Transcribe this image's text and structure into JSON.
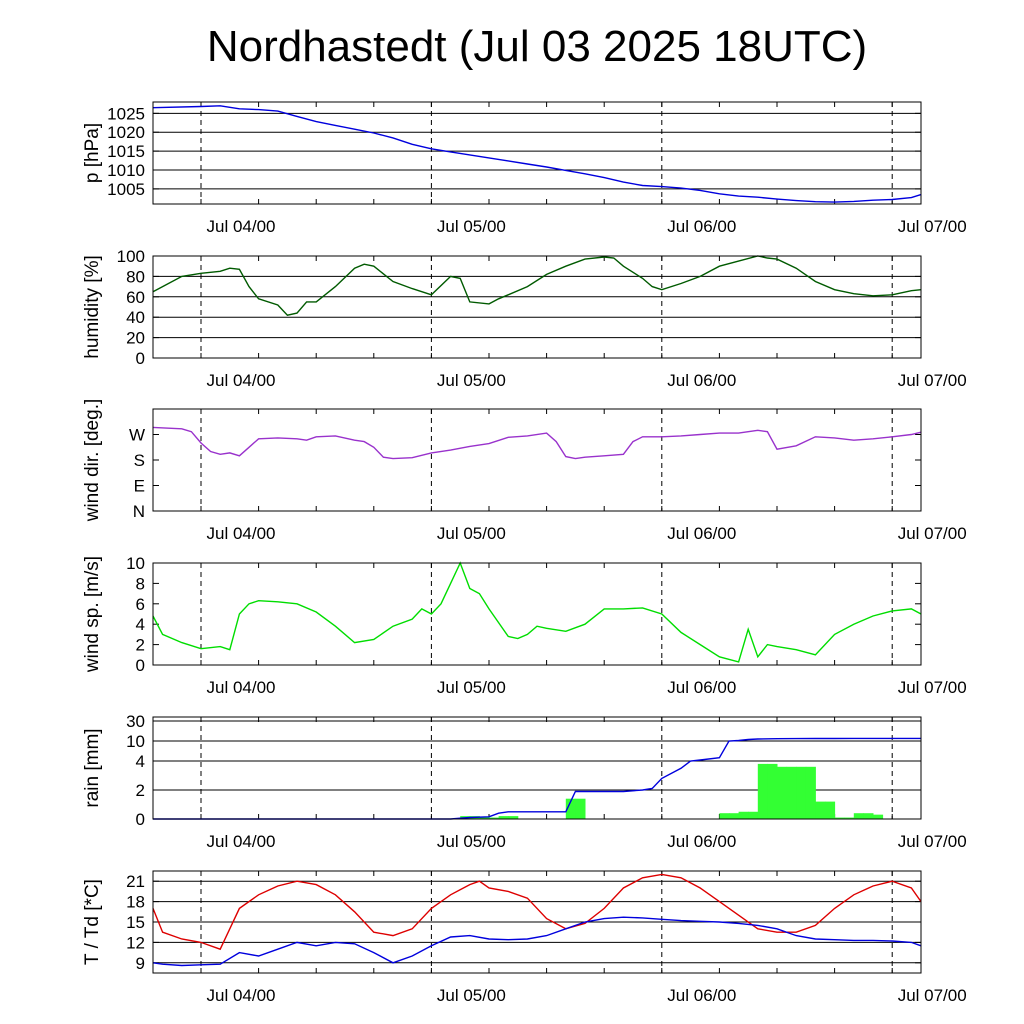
{
  "title": "Nordhastedt (Jul 03 2025 18UTC)",
  "chart_data": [
    {
      "type": "line",
      "ylabel": "p [hPa]",
      "x_tick_labels": [
        "Jul 04/00",
        "Jul 05/00",
        "Jul 06/00",
        "Jul 07/00"
      ],
      "x_range_hours": [
        -5,
        75
      ],
      "ylim": [
        1001,
        1028
      ],
      "y_ticks": [
        1005,
        1010,
        1015,
        1020,
        1025
      ],
      "grid": true,
      "series": [
        {
          "color": "#0000dd",
          "x": [
            -5,
            0,
            2,
            4,
            6,
            8,
            10,
            12,
            14,
            16,
            18,
            20,
            22,
            24,
            26,
            28,
            30,
            32,
            34,
            36,
            38,
            40,
            42,
            44,
            46,
            48,
            50,
            52,
            54,
            56,
            58,
            60,
            62,
            64,
            66,
            68,
            70,
            72,
            74,
            75
          ],
          "y": [
            1026.5,
            1026.8,
            1027,
            1026.2,
            1026.0,
            1025.6,
            1024.2,
            1022.8,
            1021.8,
            1020.8,
            1019.8,
            1018.5,
            1016.8,
            1015.6,
            1014.8,
            1014.0,
            1013.2,
            1012.4,
            1011.6,
            1010.8,
            1009.9,
            1009.0,
            1008.0,
            1006.8,
            1005.9,
            1005.6,
            1005.2,
            1004.6,
            1003.7,
            1003.1,
            1002.8,
            1002.3,
            1001.9,
            1001.6,
            1001.5,
            1001.7,
            1002.0,
            1002.2,
            1002.7,
            1003.5
          ]
        }
      ]
    },
    {
      "type": "line",
      "ylabel": "humidity [%]",
      "x_tick_labels": [
        "Jul 04/00",
        "Jul 05/00",
        "Jul 06/00",
        "Jul 07/00"
      ],
      "x_range_hours": [
        -5,
        75
      ],
      "ylim": [
        0,
        100
      ],
      "y_ticks": [
        0,
        20,
        40,
        60,
        80,
        100
      ],
      "grid": true,
      "series": [
        {
          "color": "#005a00",
          "x": [
            -5,
            -4,
            -2,
            0,
            2,
            3,
            4,
            5,
            6,
            8,
            9,
            10,
            11,
            12,
            14,
            16,
            17,
            18,
            20,
            22,
            24,
            26,
            27,
            28,
            30,
            31,
            32,
            34,
            36,
            38,
            40,
            42,
            43,
            44,
            46,
            47,
            48,
            50,
            52,
            54,
            56,
            58,
            59,
            60,
            62,
            64,
            66,
            68,
            70,
            72,
            74,
            75
          ],
          "y": [
            65,
            70,
            80,
            83,
            85,
            88,
            87,
            70,
            58,
            52,
            42,
            44,
            55,
            55,
            70,
            88,
            92,
            90,
            75,
            68,
            62,
            80,
            78,
            55,
            53,
            58,
            62,
            70,
            82,
            90,
            97,
            99,
            98,
            90,
            78,
            70,
            67,
            73,
            80,
            90,
            95,
            100,
            98,
            97,
            88,
            75,
            67,
            63,
            61,
            62,
            66,
            67
          ]
        }
      ]
    },
    {
      "type": "line",
      "ylabel": "wind dir. [deg.]",
      "x_tick_labels": [
        "Jul 04/00",
        "Jul 05/00",
        "Jul 06/00",
        "Jul 07/00"
      ],
      "x_range_hours": [
        -5,
        75
      ],
      "ylim": [
        0,
        360
      ],
      "y_ticks": [
        0,
        90,
        180,
        270
      ],
      "y_tick_labels": [
        "N",
        "E",
        "S",
        "W"
      ],
      "grid": false,
      "series": [
        {
          "color": "#9932cc",
          "x": [
            -5,
            -2,
            -1,
            0,
            1,
            2,
            3,
            4,
            5,
            6,
            8,
            10,
            11,
            12,
            14,
            16,
            17,
            18,
            19,
            20,
            22,
            24,
            26,
            28,
            30,
            32,
            34,
            36,
            37,
            38,
            39,
            40,
            42,
            44,
            45,
            46,
            48,
            50,
            52,
            54,
            56,
            57,
            58,
            59,
            60,
            62,
            64,
            66,
            68,
            70,
            72,
            74,
            75
          ],
          "y": [
            295,
            290,
            280,
            240,
            210,
            200,
            205,
            195,
            225,
            255,
            258,
            255,
            250,
            262,
            265,
            250,
            245,
            225,
            190,
            185,
            188,
            205,
            215,
            228,
            238,
            260,
            265,
            275,
            245,
            192,
            185,
            190,
            195,
            200,
            245,
            262,
            262,
            265,
            270,
            275,
            275,
            280,
            285,
            280,
            218,
            230,
            262,
            258,
            250,
            255,
            262,
            270,
            278
          ]
        }
      ]
    },
    {
      "type": "line",
      "ylabel": "wind sp. [m/s]",
      "x_tick_labels": [
        "Jul 04/00",
        "Jul 05/00",
        "Jul 06/00",
        "Jul 07/00"
      ],
      "x_range_hours": [
        -5,
        75
      ],
      "ylim": [
        0,
        10
      ],
      "y_ticks": [
        0,
        2,
        4,
        6,
        8,
        10
      ],
      "grid": false,
      "series": [
        {
          "color": "#00dd00",
          "x": [
            -5,
            -4,
            -2,
            0,
            2,
            3,
            4,
            5,
            6,
            8,
            10,
            12,
            14,
            16,
            18,
            20,
            22,
            23,
            24,
            25,
            26,
            27,
            28,
            29,
            30,
            32,
            33,
            34,
            35,
            36,
            38,
            40,
            42,
            44,
            46,
            48,
            50,
            52,
            54,
            56,
            57,
            58,
            59,
            60,
            62,
            64,
            66,
            68,
            70,
            72,
            74,
            75
          ],
          "y": [
            4.8,
            3.0,
            2.2,
            1.6,
            1.8,
            1.5,
            5.0,
            6.0,
            6.3,
            6.2,
            6.0,
            5.2,
            3.8,
            2.2,
            2.5,
            3.8,
            4.5,
            5.5,
            5.0,
            6.0,
            8.0,
            10.0,
            7.5,
            7.0,
            5.5,
            2.8,
            2.6,
            3.0,
            3.8,
            3.6,
            3.3,
            4.0,
            5.5,
            5.5,
            5.6,
            5.0,
            3.2,
            2.0,
            0.8,
            0.3,
            3.5,
            0.8,
            2.0,
            1.8,
            1.5,
            1.0,
            3.0,
            4.0,
            4.8,
            5.3,
            5.5,
            5.0
          ]
        }
      ]
    },
    {
      "type": "bar",
      "ylabel": "rain [mm]",
      "x_tick_labels": [
        "Jul 04/00",
        "Jul 05/00",
        "Jul 06/00",
        "Jul 07/00"
      ],
      "x_range_hours": [
        -5,
        75
      ],
      "y_ticks": [
        0,
        2,
        4,
        10,
        30
      ],
      "y_scale": "nonlinear",
      "grid": true,
      "bars": {
        "color": "#33ff33",
        "start_hours": [
          27,
          28,
          29,
          30,
          31,
          32,
          38,
          39,
          40,
          41,
          42,
          43,
          44,
          45,
          46,
          47,
          48,
          49,
          50,
          51,
          52,
          53,
          54,
          55,
          56,
          57,
          58,
          59,
          60,
          61,
          62,
          63,
          64,
          65,
          66,
          67,
          68,
          69,
          70
        ],
        "values": [
          0.2,
          0.2,
          0.15,
          0.1,
          0.2,
          0.2,
          0,
          0,
          0,
          0,
          0,
          0,
          0,
          0,
          0,
          0,
          0,
          0,
          0,
          0,
          0,
          0,
          0.4,
          0.4,
          0.5,
          0.5,
          3.8,
          3.8,
          3.6,
          3.6,
          3.6,
          3.6,
          1.2,
          1.2,
          0.1,
          0.1,
          0.4,
          0.4,
          0.3
        ]
      },
      "extra_bars": {
        "start_hours": [
          38,
          39
        ],
        "values": [
          1.4,
          1.4
        ]
      },
      "series": [
        {
          "color": "#0000dd",
          "name": "",
          "x": [
            -5,
            26,
            28,
            30,
            31,
            32,
            34,
            36,
            38,
            39,
            40,
            42,
            44,
            46,
            47,
            48,
            50,
            51,
            52,
            54,
            55,
            56,
            57,
            58,
            60,
            62,
            64,
            66,
            68,
            70,
            72,
            74,
            75
          ],
          "y": [
            0,
            0,
            0.1,
            0.15,
            0.4,
            0.5,
            0.5,
            0.5,
            0.5,
            1.9,
            1.9,
            1.9,
            1.9,
            2.0,
            2.1,
            2.8,
            3.5,
            4.0,
            4.3,
            5.0,
            10.0,
            10.5,
            11.5,
            12.0,
            12.3,
            12.4,
            12.5,
            12.5,
            12.6,
            12.6,
            12.6,
            12.6,
            12.6
          ]
        }
      ]
    },
    {
      "type": "line",
      "ylabel": "T / Td [*C]",
      "x_tick_labels": [
        "Jul 04/00",
        "Jul 05/00",
        "Jul 06/00",
        "Jul 07/00"
      ],
      "x_range_hours": [
        -5,
        75
      ],
      "ylim": [
        7.5,
        22.5
      ],
      "y_ticks": [
        9,
        12,
        15,
        18,
        21
      ],
      "grid": true,
      "series": [
        {
          "color": "#dd0000",
          "x": [
            -5,
            -4,
            -2,
            0,
            2,
            3,
            4,
            6,
            8,
            10,
            12,
            14,
            16,
            18,
            20,
            22,
            24,
            26,
            28,
            29,
            30,
            32,
            34,
            36,
            38,
            40,
            42,
            44,
            46,
            48,
            50,
            52,
            54,
            56,
            58,
            60,
            62,
            64,
            66,
            68,
            70,
            72,
            74,
            75
          ],
          "y": [
            17.0,
            13.5,
            12.5,
            12.0,
            11.0,
            14.0,
            17.0,
            19.0,
            20.3,
            21.0,
            20.5,
            19.0,
            16.5,
            13.5,
            13.0,
            14.0,
            17.0,
            19.0,
            20.5,
            21.0,
            20.0,
            19.5,
            18.5,
            15.5,
            14.0,
            14.8,
            17.0,
            20.0,
            21.5,
            22.0,
            21.5,
            20.0,
            18.0,
            16.0,
            14.0,
            13.5,
            13.5,
            14.5,
            17.0,
            19.0,
            20.3,
            21.0,
            20.0,
            18.0
          ]
        },
        {
          "color": "#0000dd",
          "x": [
            -5,
            -4,
            -2,
            0,
            2,
            4,
            6,
            8,
            10,
            12,
            14,
            16,
            18,
            20,
            22,
            24,
            26,
            28,
            30,
            32,
            34,
            36,
            38,
            40,
            42,
            44,
            46,
            48,
            50,
            52,
            54,
            56,
            58,
            60,
            62,
            64,
            66,
            68,
            70,
            72,
            74,
            75
          ],
          "y": [
            9.0,
            8.8,
            8.6,
            8.7,
            8.8,
            10.5,
            10.0,
            11.0,
            12.0,
            11.5,
            12.0,
            11.8,
            10.5,
            9.0,
            10.0,
            11.5,
            12.8,
            13.0,
            12.5,
            12.4,
            12.5,
            13.0,
            14.0,
            15.0,
            15.5,
            15.7,
            15.6,
            15.4,
            15.2,
            15.1,
            15.0,
            14.8,
            14.5,
            14.0,
            13.0,
            12.5,
            12.4,
            12.3,
            12.3,
            12.2,
            12.0,
            11.5
          ]
        }
      ]
    }
  ]
}
